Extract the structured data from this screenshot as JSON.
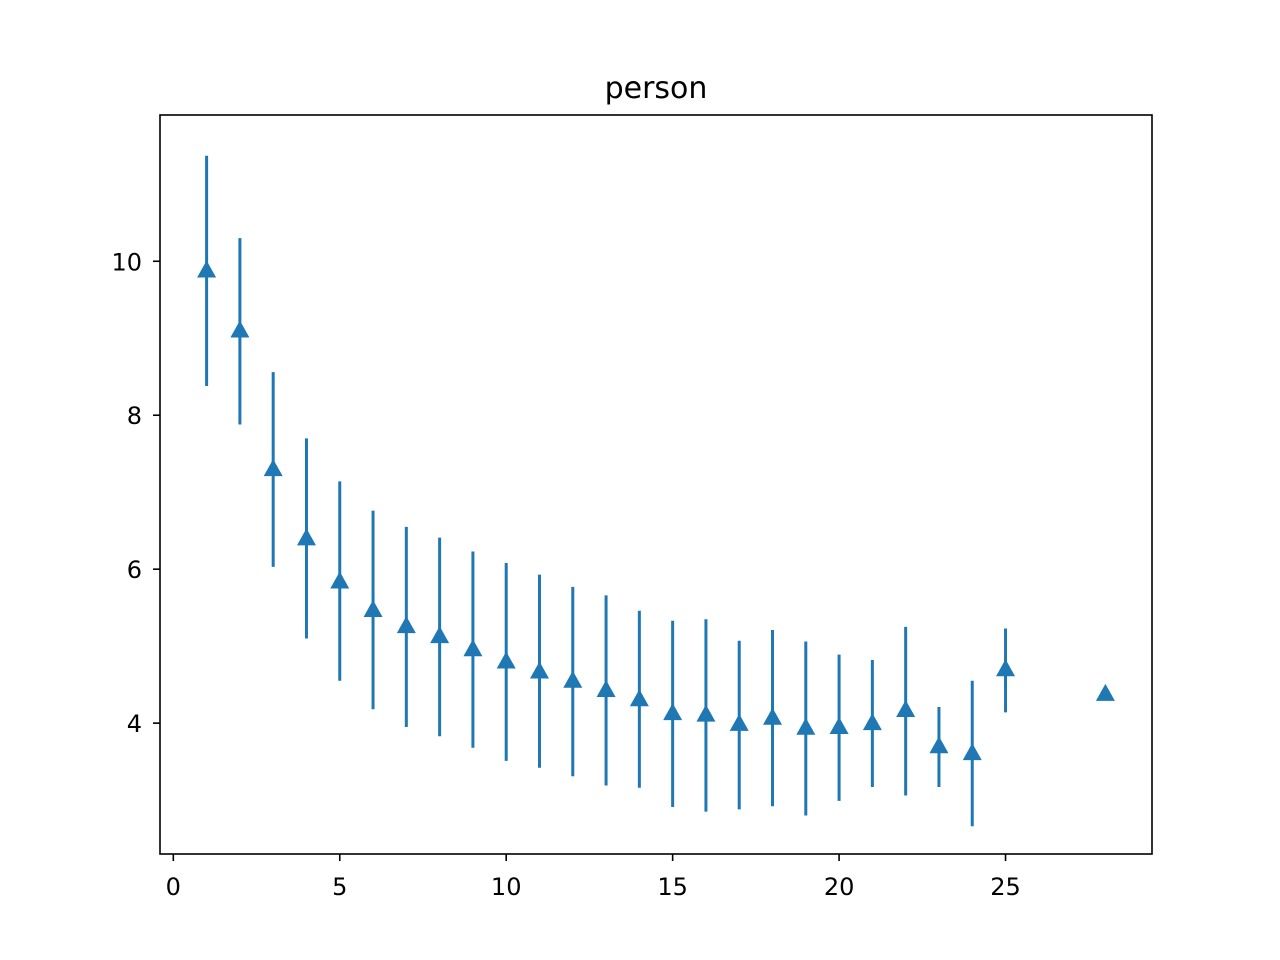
{
  "chart_data": {
    "type": "errorbar",
    "title": "person",
    "xlabel": "",
    "ylabel": "",
    "xlim": [
      -0.4,
      29.4
    ],
    "ylim": [
      2.3,
      11.9
    ],
    "xticks": [
      0,
      5,
      10,
      15,
      20,
      25
    ],
    "yticks": [
      4,
      6,
      8,
      10
    ],
    "grid": false,
    "marker": "triangle-up",
    "color": "#1f77b4",
    "series": [
      {
        "points": [
          {
            "x": 1,
            "y": 9.88,
            "lo": 8.38,
            "hi": 11.37
          },
          {
            "x": 2,
            "y": 9.1,
            "lo": 7.88,
            "hi": 10.3
          },
          {
            "x": 3,
            "y": 7.3,
            "lo": 6.03,
            "hi": 8.56
          },
          {
            "x": 4,
            "y": 6.4,
            "lo": 5.1,
            "hi": 7.7
          },
          {
            "x": 5,
            "y": 5.84,
            "lo": 4.55,
            "hi": 7.14
          },
          {
            "x": 6,
            "y": 5.47,
            "lo": 4.18,
            "hi": 6.76
          },
          {
            "x": 7,
            "y": 5.26,
            "lo": 3.95,
            "hi": 6.55
          },
          {
            "x": 8,
            "y": 5.13,
            "lo": 3.83,
            "hi": 6.41
          },
          {
            "x": 9,
            "y": 4.96,
            "lo": 3.68,
            "hi": 6.23
          },
          {
            "x": 10,
            "y": 4.8,
            "lo": 3.51,
            "hi": 6.08
          },
          {
            "x": 11,
            "y": 4.67,
            "lo": 3.42,
            "hi": 5.93
          },
          {
            "x": 12,
            "y": 4.55,
            "lo": 3.31,
            "hi": 5.77
          },
          {
            "x": 13,
            "y": 4.43,
            "lo": 3.19,
            "hi": 5.66
          },
          {
            "x": 14,
            "y": 4.31,
            "lo": 3.16,
            "hi": 5.46
          },
          {
            "x": 15,
            "y": 4.13,
            "lo": 2.91,
            "hi": 5.33
          },
          {
            "x": 16,
            "y": 4.11,
            "lo": 2.85,
            "hi": 5.35
          },
          {
            "x": 17,
            "y": 3.99,
            "lo": 2.88,
            "hi": 5.07
          },
          {
            "x": 18,
            "y": 4.07,
            "lo": 2.92,
            "hi": 5.21
          },
          {
            "x": 19,
            "y": 3.94,
            "lo": 2.8,
            "hi": 5.06
          },
          {
            "x": 20,
            "y": 3.95,
            "lo": 2.99,
            "hi": 4.89
          },
          {
            "x": 21,
            "y": 4.0,
            "lo": 3.17,
            "hi": 4.82
          },
          {
            "x": 22,
            "y": 4.17,
            "lo": 3.06,
            "hi": 5.25
          },
          {
            "x": 23,
            "y": 3.7,
            "lo": 3.17,
            "hi": 4.21
          },
          {
            "x": 24,
            "y": 3.61,
            "lo": 2.66,
            "hi": 4.55
          },
          {
            "x": 25,
            "y": 4.7,
            "lo": 4.14,
            "hi": 5.23
          },
          {
            "x": 28,
            "y": 4.38,
            "lo": 4.38,
            "hi": 4.38
          }
        ]
      }
    ]
  }
}
